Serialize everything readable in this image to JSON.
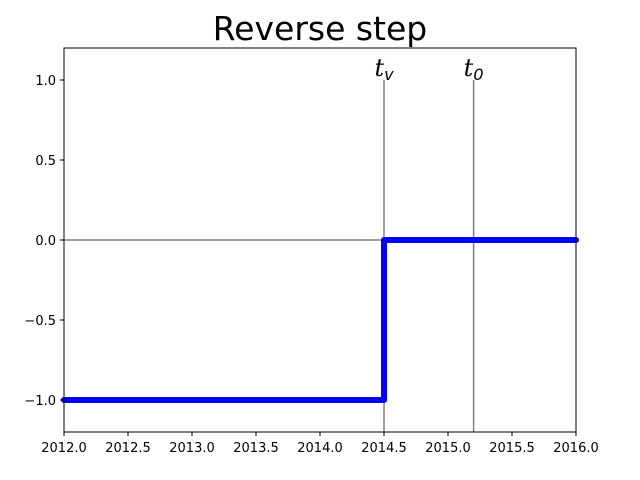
{
  "chart_data": {
    "type": "line",
    "title": "Reverse step",
    "xlabel": "",
    "ylabel": "",
    "xlim": [
      2012.0,
      2016.0
    ],
    "ylim": [
      -1.2,
      1.2
    ],
    "xticks": [
      2012.0,
      2012.5,
      2013.0,
      2013.5,
      2014.0,
      2014.5,
      2015.0,
      2015.5,
      2016.0
    ],
    "xtick_labels": [
      "2012.0",
      "2012.5",
      "2013.0",
      "2013.5",
      "2014.0",
      "2014.5",
      "2015.0",
      "2015.5",
      "2016.0"
    ],
    "yticks": [
      -1.0,
      -0.5,
      0.0,
      0.5,
      1.0
    ],
    "ytick_labels": [
      "−1.0",
      "−0.5",
      "0.0",
      "0.5",
      "1.0"
    ],
    "grid": false,
    "series": [
      {
        "color": "#0000ff",
        "x": [
          2012.0,
          2014.5,
          2014.5,
          2016.0
        ],
        "y": [
          -1.0,
          -1.0,
          0.0,
          0.0
        ]
      }
    ],
    "reference_lines": [
      {
        "type": "horizontal",
        "y": 0.0,
        "color": "#808080"
      },
      {
        "type": "vertical",
        "x": 2014.5,
        "ymax": 1.0,
        "label_main": "t",
        "label_sub": "v",
        "color": "#808080"
      },
      {
        "type": "vertical",
        "x": 2015.2,
        "ymax": 1.0,
        "label_main": "t",
        "label_sub": "0",
        "color": "#808080"
      }
    ]
  }
}
